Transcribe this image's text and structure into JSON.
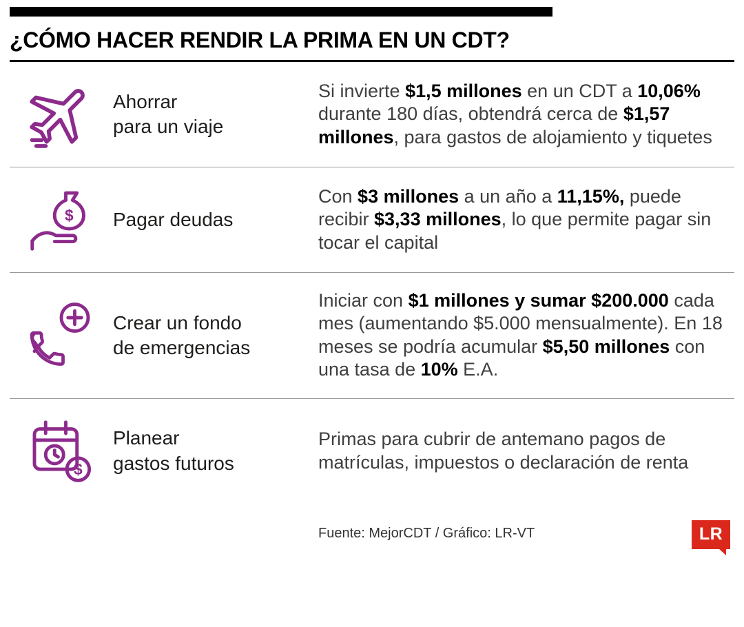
{
  "colors": {
    "accent": "#8C2B8C",
    "logo_red": "#DA291C"
  },
  "header": {
    "title": "¿CÓMO HACER RENDIR LA PRIMA EN UN CDT?"
  },
  "rows": [
    {
      "icon": "airplane-icon",
      "label": "Ahorrar\npara un viaje",
      "description": "Si invierte **$1,5 millones** en un CDT a **10,06%** durante 180 días, obtendrá cerca de **$1,57 millones**, para gastos de alojamiento y tiquetes"
    },
    {
      "icon": "hand-money-bag-icon",
      "label": "Pagar deudas",
      "description": "Con **$3 millones** a un año a **11,15%,** puede recibir **$3,33 millones**, lo que permite pagar sin tocar el capital"
    },
    {
      "icon": "emergency-call-icon",
      "label": "Crear un fondo\nde emergencias",
      "description": "Iniciar con **$1 millones y sumar $200.000** cada mes (aumentando $5.000 mensualmente). En 18 meses se podría acumular **$5,50 millones** con una tasa de **10%** E.A."
    },
    {
      "icon": "calendar-money-icon",
      "label": "Planear\ngastos futuros",
      "description": "Primas para cubrir de antemano pagos de matrículas, impuestos o declaración de renta"
    }
  ],
  "footer": {
    "source": "Fuente: MejorCDT / Gráfico: LR-VT",
    "logo_text": "LR"
  }
}
